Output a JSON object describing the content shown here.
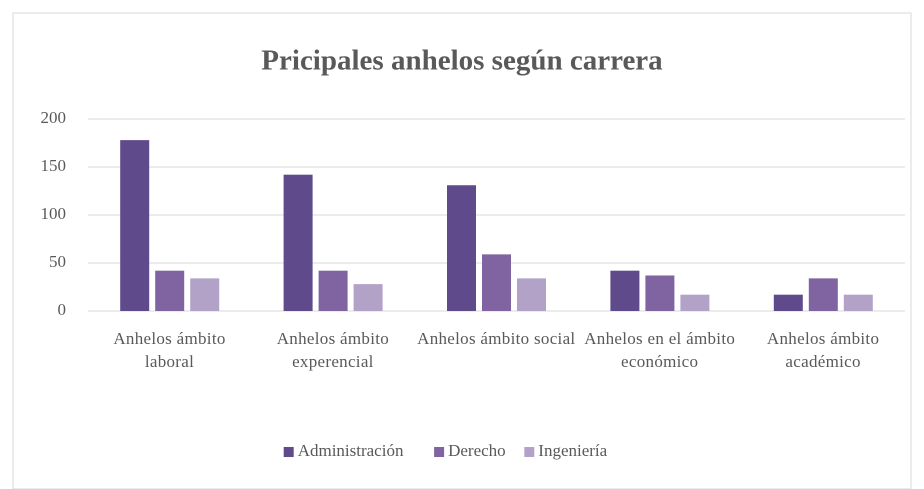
{
  "chart_data": {
    "type": "bar",
    "title": "Pricipales anhelos según carrera",
    "categories": [
      "Anhelos ámbito laboral",
      "Anhelos ámbito experencial",
      "Anhelos ámbito social",
      "Anhelos en el ámbito económico",
      "Anhelos ámbito académico"
    ],
    "series": [
      {
        "name": "Administración",
        "color": "#5f4a8b",
        "values": [
          178,
          142,
          131,
          42,
          17
        ]
      },
      {
        "name": "Derecho",
        "color": "#8064a2",
        "values": [
          42,
          42,
          59,
          37,
          34
        ]
      },
      {
        "name": "Ingeniería",
        "color": "#b3a2c7",
        "values": [
          34,
          28,
          34,
          17,
          17
        ]
      }
    ],
    "ylim": [
      0,
      200
    ],
    "yticks": [
      0,
      50,
      100,
      150,
      200
    ],
    "grid": true,
    "legend": "bottom"
  }
}
